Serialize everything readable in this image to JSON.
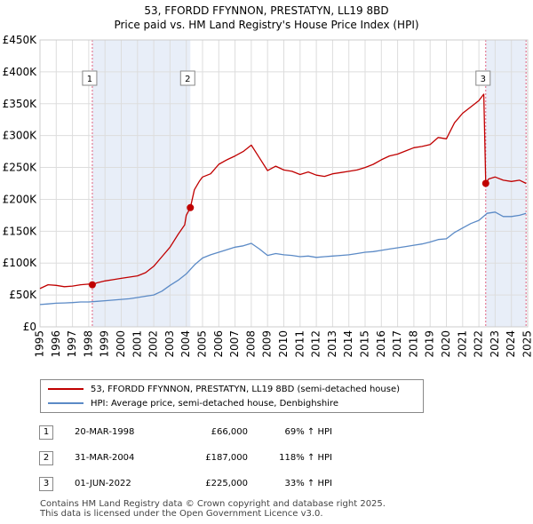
{
  "header": {
    "title_line1": "53, FFORDD FFYNNON, PRESTATYN, LL19 8BD",
    "title_line2": "Price paid vs. HM Land Registry's House Price Index (HPI)"
  },
  "colors": {
    "property": "#c00000",
    "hpi": "#5b8ac6",
    "shade": "#e8eef8",
    "vline": "#e06080"
  },
  "chart_data": {
    "type": "line",
    "xlim": [
      1995,
      2025
    ],
    "ylim": [
      0,
      450000
    ],
    "y_ticks": [
      0,
      50000,
      100000,
      150000,
      200000,
      250000,
      300000,
      350000,
      400000,
      450000
    ],
    "y_tick_labels": [
      "£0",
      "£50K",
      "£100K",
      "£150K",
      "£200K",
      "£250K",
      "£300K",
      "£350K",
      "£400K",
      "£450K"
    ],
    "x_tick_labels": [
      "1995",
      "1996",
      "1997",
      "1998",
      "1999",
      "2000",
      "2001",
      "2002",
      "2003",
      "2004",
      "2005",
      "2006",
      "2007",
      "2008",
      "2009",
      "2010",
      "2011",
      "2012",
      "2013",
      "2014",
      "2015",
      "2016",
      "2017",
      "2018",
      "2019",
      "2020",
      "2021",
      "2022",
      "2023",
      "2024",
      "2025"
    ],
    "shaded_ranges": [
      [
        1998.22,
        2004.25
      ],
      [
        2022.42,
        2024.9
      ]
    ],
    "series": [
      {
        "name": "53, FFORDD FFYNNON, PRESTATYN, LL19 8BD (semi-detached house)",
        "color": "#c00000",
        "x": [
          1995.0,
          1995.5,
          1996.0,
          1996.5,
          1997.0,
          1997.5,
          1998.0,
          1998.22,
          1998.5,
          1999.0,
          1999.5,
          2000.0,
          2000.5,
          2001.0,
          2001.5,
          2002.0,
          2002.5,
          2003.0,
          2003.5,
          2003.9,
          2004.0,
          2004.25,
          2004.5,
          2004.8,
          2005.0,
          2005.5,
          2006.0,
          2006.5,
          2007.0,
          2007.5,
          2008.0,
          2008.5,
          2009.0,
          2009.5,
          2010.0,
          2010.5,
          2011.0,
          2011.5,
          2012.0,
          2012.5,
          2013.0,
          2013.5,
          2014.0,
          2014.5,
          2015.0,
          2015.5,
          2016.0,
          2016.5,
          2017.0,
          2017.5,
          2018.0,
          2018.5,
          2019.0,
          2019.5,
          2020.0,
          2020.5,
          2021.0,
          2021.5,
          2022.0,
          2022.3,
          2022.42,
          2022.6,
          2023.0,
          2023.5,
          2024.0,
          2024.5,
          2024.9
        ],
        "y": [
          60000,
          66000,
          65000,
          63000,
          64000,
          66000,
          67000,
          66000,
          69000,
          72000,
          74000,
          76000,
          78000,
          80000,
          85000,
          95000,
          110000,
          125000,
          145000,
          160000,
          175000,
          187000,
          215000,
          228000,
          235000,
          240000,
          255000,
          262000,
          268000,
          275000,
          285000,
          265000,
          245000,
          252000,
          246000,
          244000,
          239000,
          243000,
          238000,
          236000,
          240000,
          242000,
          244000,
          246000,
          250000,
          255000,
          262000,
          268000,
          271000,
          276000,
          281000,
          283000,
          286000,
          297000,
          295000,
          320000,
          335000,
          345000,
          355000,
          365000,
          225000,
          232000,
          235000,
          230000,
          228000,
          230000,
          225000
        ]
      },
      {
        "name": "HPI: Average price, semi-detached house, Denbighshire",
        "color": "#5b8ac6",
        "x": [
          1995.0,
          1995.5,
          1996.0,
          1996.5,
          1997.0,
          1997.5,
          1998.0,
          1998.5,
          1999.0,
          1999.5,
          2000.0,
          2000.5,
          2001.0,
          2001.5,
          2002.0,
          2002.5,
          2003.0,
          2003.5,
          2004.0,
          2004.5,
          2005.0,
          2005.5,
          2006.0,
          2006.5,
          2007.0,
          2007.5,
          2008.0,
          2008.5,
          2009.0,
          2009.5,
          2010.0,
          2010.5,
          2011.0,
          2011.5,
          2012.0,
          2012.5,
          2013.0,
          2013.5,
          2014.0,
          2014.5,
          2015.0,
          2015.5,
          2016.0,
          2016.5,
          2017.0,
          2017.5,
          2018.0,
          2018.5,
          2019.0,
          2019.5,
          2020.0,
          2020.5,
          2021.0,
          2021.5,
          2022.0,
          2022.5,
          2023.0,
          2023.5,
          2024.0,
          2024.5,
          2024.9
        ],
        "y": [
          35000,
          36000,
          37000,
          37500,
          38000,
          39000,
          39000,
          40000,
          41000,
          42000,
          43000,
          44000,
          46000,
          48000,
          50000,
          56000,
          65000,
          73000,
          83000,
          97000,
          108000,
          113000,
          117000,
          121000,
          125000,
          127000,
          131000,
          122000,
          112000,
          115000,
          113000,
          112000,
          110000,
          111000,
          109000,
          110000,
          111000,
          112000,
          113000,
          115000,
          117000,
          118000,
          120000,
          122000,
          124000,
          126000,
          128000,
          130000,
          133000,
          137000,
          138000,
          148000,
          155000,
          162000,
          167000,
          178000,
          180000,
          173000,
          173000,
          175000,
          178000
        ]
      }
    ],
    "sale_markers": [
      {
        "label": "1",
        "x": 1998.22,
        "y": 66000
      },
      {
        "label": "2",
        "x": 2004.25,
        "y": 187000
      },
      {
        "label": "3",
        "x": 2022.42,
        "y": 225000
      }
    ]
  },
  "legend": {
    "property_label": "53, FFORDD FFYNNON, PRESTATYN, LL19 8BD (semi-detached house)",
    "hpi_label": "HPI: Average price, semi-detached house, Denbighshire"
  },
  "sales": [
    {
      "index": "1",
      "date": "20-MAR-1998",
      "price": "£66,000",
      "hpi": "69% ↑ HPI"
    },
    {
      "index": "2",
      "date": "31-MAR-2004",
      "price": "£187,000",
      "hpi": "118% ↑ HPI"
    },
    {
      "index": "3",
      "date": "01-JUN-2022",
      "price": "£225,000",
      "hpi": "33% ↑ HPI"
    }
  ],
  "footer": {
    "line1": "Contains HM Land Registry data © Crown copyright and database right 2025.",
    "line2": "This data is licensed under the Open Government Licence v3.0."
  }
}
